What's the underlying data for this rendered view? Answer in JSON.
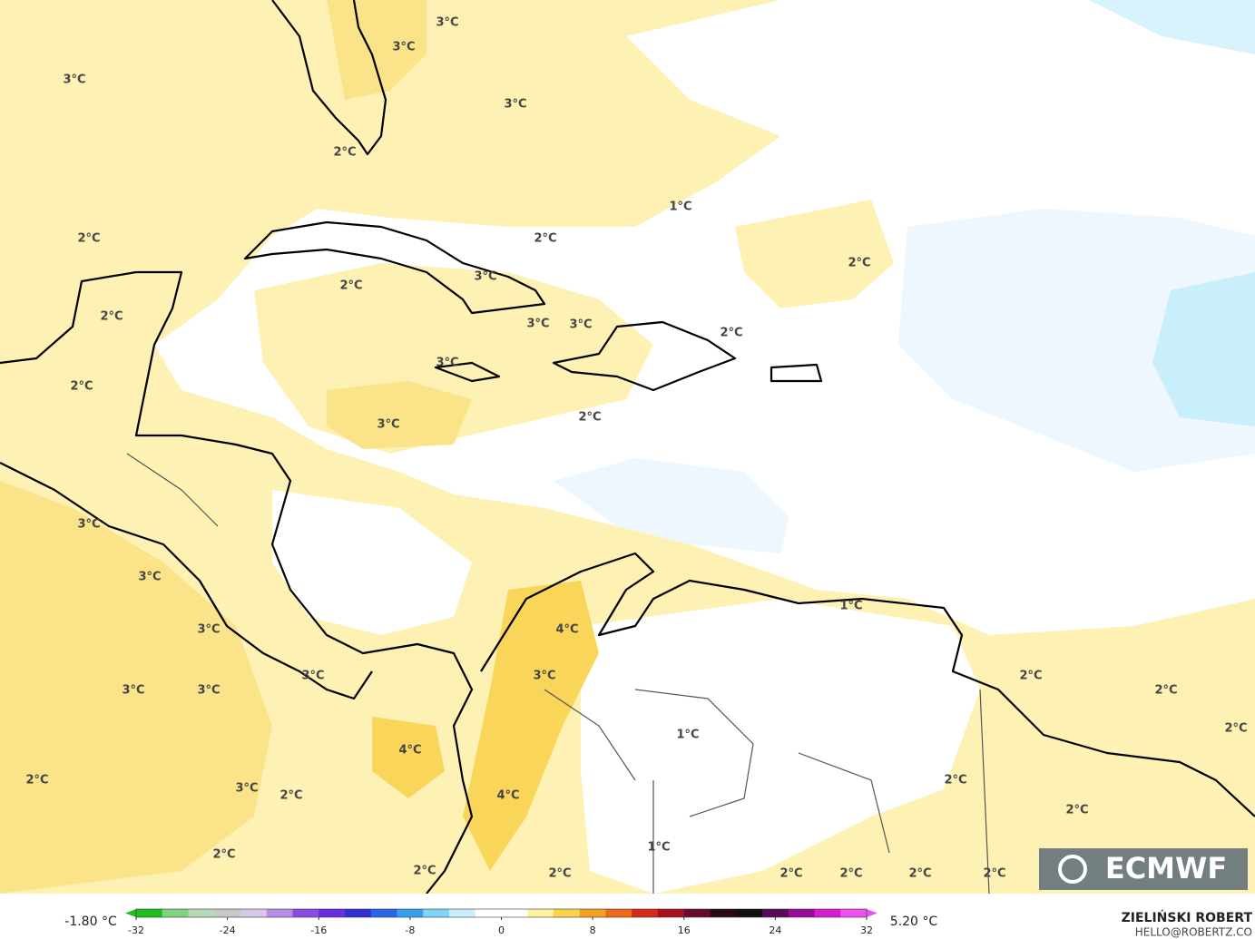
{
  "map": {
    "contour_labels": [
      "3°C",
      "3°C",
      "3°C",
      "3°C",
      "2°C",
      "1°C",
      "2°C",
      "2°C",
      "2°C",
      "2°C",
      "3°C",
      "2°C",
      "3°C",
      "3°C",
      "2°C",
      "3°C",
      "2°C",
      "3°C",
      "2°C",
      "3°C",
      "3°C",
      "4°C",
      "3°C",
      "3°C",
      "2°C",
      "3°C",
      "3°C",
      "2°C",
      "3°C",
      "1°C",
      "2°C",
      "4°C",
      "2°C",
      "3°C",
      "2°C",
      "2°C",
      "4°C",
      "2°C",
      "2°C",
      "1°C",
      "2°C",
      "2°C",
      "2°C",
      "2°C",
      "2°C",
      "2°C",
      "1°C"
    ],
    "logo": "ECMWF"
  },
  "colorbar": {
    "min_label": "-1.80 °C",
    "max_label": "5.20 °C",
    "range": [
      -32,
      32
    ],
    "ticks": [
      -32,
      -24,
      -16,
      -8,
      0,
      8,
      16,
      24,
      32
    ]
  },
  "credits": {
    "author": "ZIELIŃSKI ROBERT",
    "contact": "HELLO@ROBERTZ.CO"
  }
}
